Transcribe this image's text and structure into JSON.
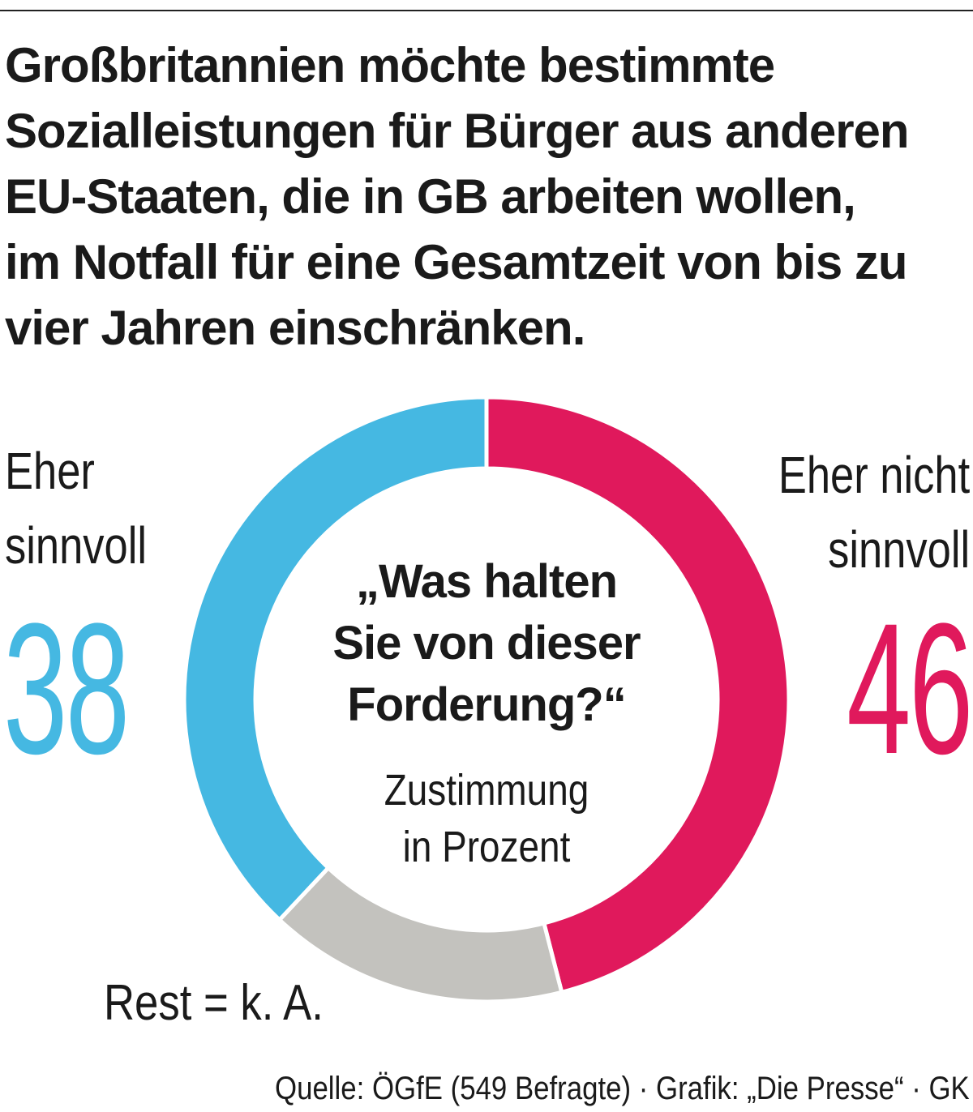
{
  "headline": "Großbritannien möchte bestimmte\nSozialleistungen für Bürger aus anderen\nEU-Staaten, die in GB arbeiten wollen,\nim Notfall für eine Gesamtzeit von bis zu\nvier Jahren einschränken.",
  "question": "„Was halten\nSie von dieser\nForderung?“",
  "unit_note": "Zustimmung\nin Prozent",
  "rest_note": "Rest = k. A.",
  "source": "Quelle: ÖGfE (549 Befragte) · Grafik: „Die Presse“ · GK",
  "colors": {
    "sinnvoll": "#45b8e2",
    "nicht_sinnvoll": "#e0195c",
    "rest": "#c3c2be"
  },
  "chart_data": {
    "type": "pie",
    "variant": "donut",
    "start_position": "top",
    "direction": "clockwise",
    "slices": [
      {
        "label": "Eher nicht sinnvoll",
        "value": 46,
        "color": "#e0195c",
        "display_value": "46"
      },
      {
        "label": "Rest = k. A.",
        "value": 16,
        "color": "#c3c2be"
      },
      {
        "label": "Eher sinnvoll",
        "value": 38,
        "color": "#45b8e2",
        "display_value": "38"
      }
    ],
    "legend": "none"
  },
  "labels": {
    "left_text": "Eher\nsinnvoll",
    "left_value": "38",
    "right_text": "Eher nicht\nsinnvoll",
    "right_value": "46"
  }
}
